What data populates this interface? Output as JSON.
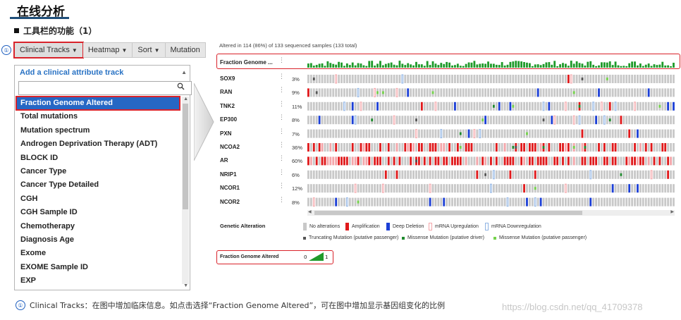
{
  "heading": {
    "title": "在线分析",
    "subtitle": "工具栏的功能（1）"
  },
  "toolbar": {
    "marker": "①",
    "items": [
      {
        "label": "Clinical Tracks",
        "has_caret": true,
        "active": true
      },
      {
        "label": "Heatmap",
        "has_caret": true
      },
      {
        "label": "Sort",
        "has_caret": true
      },
      {
        "label": "Mutation",
        "has_caret": false
      }
    ]
  },
  "dropdown": {
    "header": "Add a clinical attribute track",
    "search_value": "",
    "items": [
      "Fraction Genome Altered",
      "Total mutations",
      "Mutation spectrum",
      "Androgen Deprivation Therapy (ADT)",
      "BLOCK ID",
      "Cancer Type",
      "Cancer Type Detailed",
      "CGH",
      "CGH Sample ID",
      "Chemotherapy",
      "Diagnosis Age",
      "Exome",
      "EXOME Sample ID",
      "EXP"
    ],
    "selected_index": 0
  },
  "oncoprint": {
    "summary": "Altered in 114 (86%) of 133 sequenced samples (133 total)",
    "clinical_track_label": "Fraction Genome ...",
    "genes": [
      {
        "name": "SOX9",
        "pct": "3%"
      },
      {
        "name": "RAN",
        "pct": "9%"
      },
      {
        "name": "TNK2",
        "pct": "11%"
      },
      {
        "name": "EP300",
        "pct": "8%"
      },
      {
        "name": "PXN",
        "pct": "7%"
      },
      {
        "name": "NCOA2",
        "pct": "36%"
      },
      {
        "name": "AR",
        "pct": "60%"
      },
      {
        "name": "NRIP1",
        "pct": "6%"
      },
      {
        "name": "NCOR1",
        "pct": "12%"
      },
      {
        "name": "NCOR2",
        "pct": "8%"
      }
    ],
    "colors": {
      "no_alteration": "#c8c8c8",
      "amplification": "#e0191b",
      "deep_deletion": "#1c3fd6",
      "mrna_up": "#f4a5a9",
      "mrna_down": "#8fb3e3",
      "truncating": "#555555",
      "missense_driver": "#1f8a2e",
      "missense_passenger": "#74d24b",
      "fga_bar": "#1f9a2a"
    }
  },
  "legend": {
    "title": "Genetic Alteration",
    "items": [
      "No alterations",
      "Amplification",
      "Deep Deletion",
      "mRNA Upregulation",
      "mRNA Downregulation"
    ],
    "mutations": [
      "Truncating Mutation (putative passenger)",
      "Missense Mutation (putative driver)",
      "Missense Mutation (putative passenger)"
    ],
    "fga": {
      "label": "Fraction Genome Altered",
      "min": "0",
      "max": "1"
    }
  },
  "footnote": {
    "marker": "①",
    "text": "Clinical Tracks：在图中增加临床信息。如点击选择“Fraction Genome Altered”，可在图中增加显示基因组变化的比例"
  },
  "watermark": "https://blog.csdn.net/qq_41709378"
}
